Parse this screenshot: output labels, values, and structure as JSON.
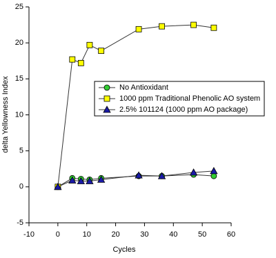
{
  "chart_data": {
    "type": "line",
    "x_label": "Cycles",
    "y_label": "delta Yellowness Index",
    "x": [
      0,
      5,
      8,
      11,
      15,
      28,
      36,
      47,
      54
    ],
    "series": [
      {
        "name": "No Antioxidant",
        "color": "#33cc33",
        "marker": "circle",
        "values": [
          0,
          1.2,
          1.1,
          1.0,
          1.2,
          1.5,
          1.5,
          1.7,
          1.5
        ]
      },
      {
        "name": "1000 ppm Traditional Phenolic AO system",
        "color": "#ffff00",
        "marker": "square",
        "values": [
          0,
          17.7,
          17.2,
          19.7,
          18.9,
          21.9,
          22.3,
          22.5,
          22.1
        ]
      },
      {
        "name": "2.5% 101124 (1000 ppm AO package)",
        "color": "#1a1aa6",
        "marker": "triangle",
        "values": [
          0,
          0.9,
          0.8,
          0.8,
          1.0,
          1.6,
          1.5,
          2.0,
          2.2
        ]
      }
    ],
    "xlim": [
      -10,
      60
    ],
    "xticks": [
      -10,
      0,
      10,
      20,
      30,
      40,
      50,
      60
    ],
    "ylim": [
      -5,
      25
    ],
    "yticks": [
      -5,
      0,
      5,
      10,
      15,
      20,
      25
    ]
  }
}
